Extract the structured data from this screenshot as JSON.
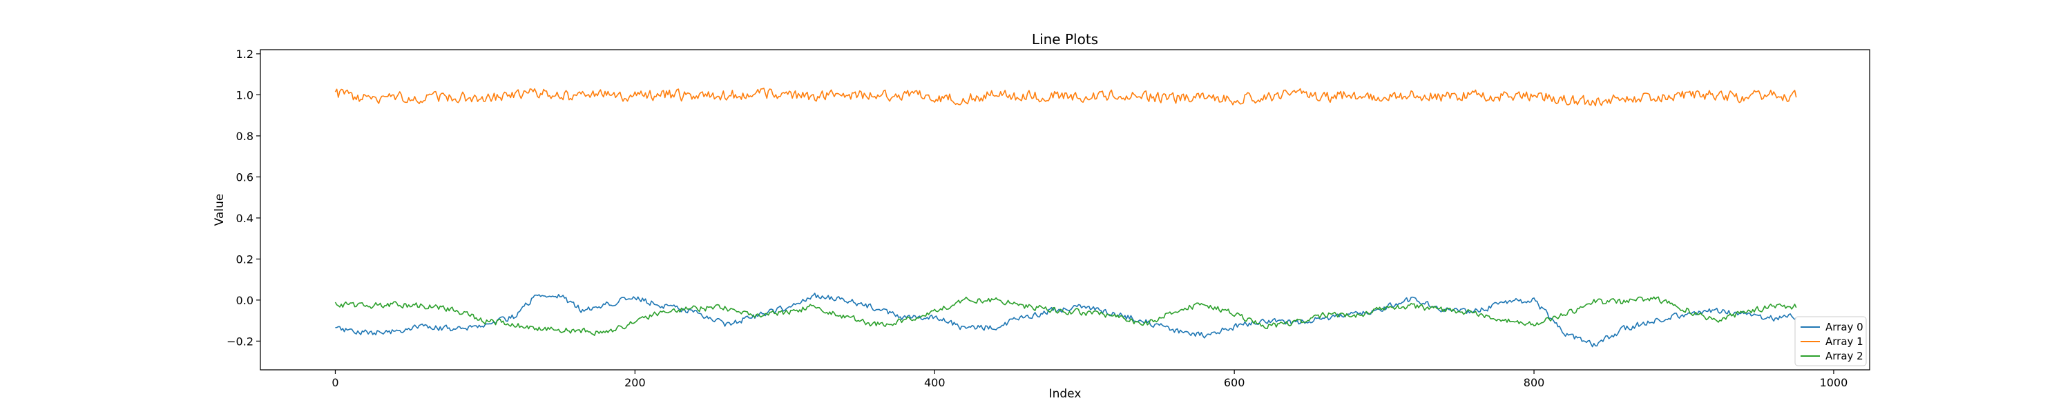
{
  "chart_data": {
    "type": "line",
    "title": "Line Plots",
    "xlabel": "Index",
    "ylabel": "Value",
    "xlim": [
      -50,
      1024
    ],
    "ylim": [
      -0.34,
      1.22
    ],
    "xticks": [
      0,
      200,
      400,
      600,
      800,
      1000
    ],
    "yticks": [
      -0.2,
      0.0,
      0.2,
      0.4,
      0.6,
      0.8,
      1.0,
      1.2
    ],
    "ytick_labels": [
      "−0.2",
      "0.0",
      "0.2",
      "0.4",
      "0.6",
      "0.8",
      "1.0",
      "1.2"
    ],
    "grid": false,
    "legend_position": "lower right",
    "x_start": 0,
    "x_end": 975,
    "series": [
      {
        "name": "Array 0",
        "color": "#1f77b4",
        "anchors_x": [
          0,
          20,
          40,
          60,
          80,
          100,
          120,
          135,
          150,
          165,
          180,
          200,
          220,
          240,
          260,
          280,
          300,
          320,
          340,
          360,
          380,
          400,
          420,
          440,
          460,
          480,
          500,
          520,
          540,
          560,
          580,
          600,
          620,
          640,
          660,
          680,
          700,
          720,
          740,
          760,
          780,
          800,
          820,
          840,
          860,
          880,
          900,
          920,
          940,
          960,
          975
        ],
        "anchors_y": [
          -0.14,
          -0.16,
          -0.15,
          -0.13,
          -0.14,
          -0.12,
          -0.08,
          0.03,
          0.02,
          -0.05,
          -0.02,
          0.01,
          -0.03,
          -0.06,
          -0.12,
          -0.08,
          -0.04,
          0.02,
          0.0,
          -0.04,
          -0.09,
          -0.08,
          -0.14,
          -0.13,
          -0.08,
          -0.05,
          -0.03,
          -0.07,
          -0.1,
          -0.15,
          -0.17,
          -0.13,
          -0.1,
          -0.11,
          -0.09,
          -0.07,
          -0.04,
          0.01,
          -0.05,
          -0.06,
          -0.01,
          0.0,
          -0.16,
          -0.22,
          -0.14,
          -0.1,
          -0.07,
          -0.05,
          -0.07,
          -0.09,
          -0.08
        ],
        "noise": 0.013
      },
      {
        "name": "Array 1",
        "color": "#ff7f0e",
        "anchors_x": [
          0,
          20,
          40,
          60,
          80,
          100,
          120,
          140,
          160,
          180,
          200,
          220,
          240,
          260,
          280,
          300,
          320,
          340,
          360,
          380,
          400,
          420,
          440,
          460,
          480,
          500,
          520,
          540,
          560,
          580,
          600,
          620,
          640,
          660,
          680,
          700,
          720,
          740,
          760,
          780,
          800,
          820,
          840,
          860,
          880,
          900,
          920,
          940,
          960,
          975
        ],
        "anchors_y": [
          1.0,
          0.98,
          0.99,
          0.98,
          0.99,
          0.98,
          1.0,
          1.01,
          0.99,
          1.0,
          0.99,
          1.0,
          0.99,
          1.0,
          1.0,
          1.01,
          0.99,
          1.0,
          0.99,
          1.0,
          0.99,
          0.98,
          1.0,
          0.99,
          1.0,
          0.99,
          1.0,
          0.99,
          0.98,
          0.99,
          0.98,
          0.99,
          1.0,
          0.99,
          1.0,
          0.99,
          1.0,
          0.99,
          1.0,
          0.99,
          1.0,
          0.98,
          0.96,
          0.98,
          0.99,
          1.0,
          1.0,
          0.99,
          1.0,
          0.99
        ],
        "noise": 0.024
      },
      {
        "name": "Array 2",
        "color": "#2ca02c",
        "anchors_x": [
          0,
          20,
          40,
          60,
          80,
          100,
          120,
          140,
          160,
          180,
          200,
          220,
          240,
          260,
          280,
          300,
          320,
          340,
          360,
          380,
          400,
          420,
          440,
          460,
          480,
          500,
          520,
          540,
          560,
          580,
          600,
          620,
          640,
          660,
          680,
          700,
          720,
          740,
          760,
          780,
          800,
          820,
          840,
          860,
          880,
          900,
          920,
          940,
          960,
          975
        ],
        "anchors_y": [
          -0.02,
          -0.03,
          -0.02,
          -0.03,
          -0.05,
          -0.1,
          -0.12,
          -0.14,
          -0.15,
          -0.16,
          -0.11,
          -0.05,
          -0.04,
          -0.04,
          -0.07,
          -0.06,
          -0.03,
          -0.08,
          -0.12,
          -0.1,
          -0.05,
          0.0,
          0.0,
          -0.03,
          -0.05,
          -0.06,
          -0.08,
          -0.12,
          -0.05,
          -0.02,
          -0.06,
          -0.13,
          -0.11,
          -0.07,
          -0.08,
          -0.04,
          -0.03,
          -0.05,
          -0.06,
          -0.1,
          -0.12,
          -0.07,
          -0.01,
          -0.01,
          0.01,
          -0.04,
          -0.1,
          -0.06,
          -0.03,
          -0.03
        ],
        "noise": 0.013
      }
    ]
  }
}
